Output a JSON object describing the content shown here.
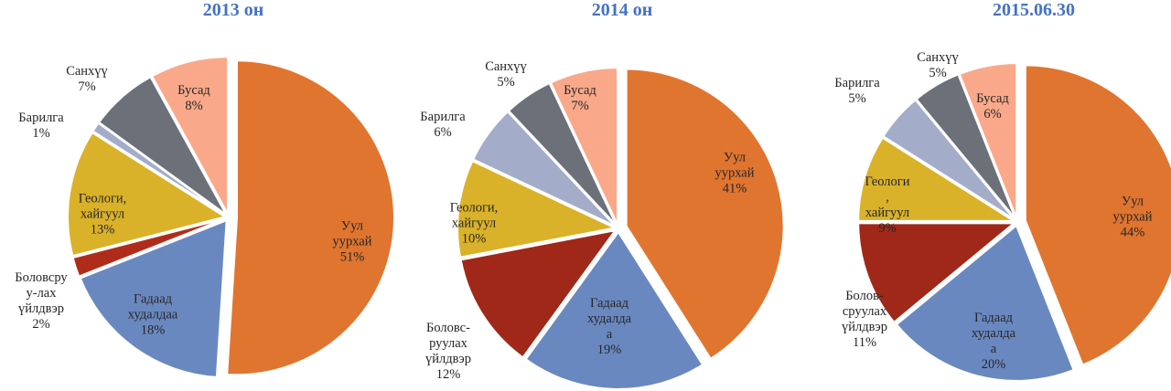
{
  "chart_data": [
    {
      "type": "pie",
      "title": "2013 он",
      "categories": [
        "Уул\nуурхай",
        "Гадаад\nхудалдаа",
        "Боловсру\nу-лах\nүйлдвэр",
        "Геологи,\nхайгуул",
        "Барилга",
        "Санхүү",
        "Бусад"
      ],
      "values": [
        51,
        18,
        2,
        13,
        1,
        7,
        8
      ],
      "value_labels": [
        "51%",
        "18%",
        "2%",
        "13%",
        "1%",
        "7%",
        "8%"
      ],
      "colors": [
        "#e07530",
        "#6a88c0",
        "#b02c1a",
        "#d9b22a",
        "#a3adc9",
        "#6c7078",
        "#f9a98a"
      ]
    },
    {
      "type": "pie",
      "title": "2014 он",
      "categories": [
        "Уул\nуурхай",
        "Гадаад\nхудалда\nа",
        "Боловс-\nруулах\nүйлдвэр",
        "Геологи,\nхайгуул",
        "Барилга",
        "Санхүү",
        "Бусад"
      ],
      "values": [
        41,
        19,
        12,
        10,
        6,
        5,
        7
      ],
      "value_labels": [
        "41%",
        "19%",
        "12%",
        "10%",
        "6%",
        "5%",
        "7%"
      ],
      "colors": [
        "#e07530",
        "#6a88c0",
        "#a02818",
        "#d9b22a",
        "#a3adc9",
        "#6c7078",
        "#f9a98a"
      ]
    },
    {
      "type": "pie",
      "title": "2015.06.30",
      "categories": [
        "Уул\nуурхай",
        "Гадаад\nхудалда\nа",
        "Болов-\nсруулах\nүйлдвэр",
        "Геологи\n,\nхайгуул",
        "Барилга",
        "Санхүү",
        "Бусад"
      ],
      "values": [
        44,
        20,
        11,
        9,
        5,
        5,
        6
      ],
      "value_labels": [
        "44%",
        "20%",
        "11%",
        "9%",
        "5%",
        "5%",
        "6%"
      ],
      "colors": [
        "#e07530",
        "#6a88c0",
        "#a02818",
        "#d9b22a",
        "#a3adc9",
        "#6c7078",
        "#f9a98a"
      ]
    }
  ]
}
